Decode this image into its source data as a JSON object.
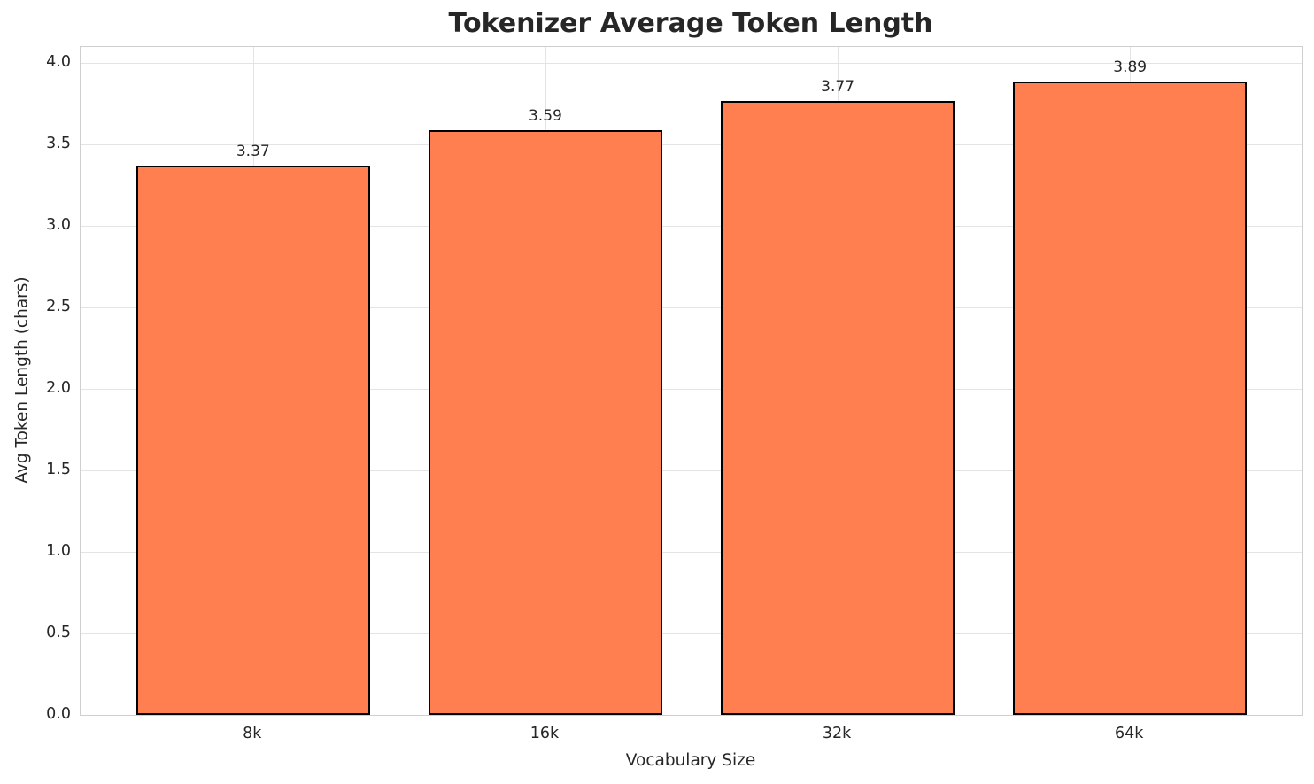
{
  "chart_data": {
    "type": "bar",
    "title": "Tokenizer Average Token Length",
    "xlabel": "Vocabulary Size",
    "ylabel": "Avg Token Length (chars)",
    "categories": [
      "8k",
      "16k",
      "32k",
      "64k"
    ],
    "values": [
      3.37,
      3.59,
      3.77,
      3.89
    ],
    "value_labels": [
      "3.37",
      "3.59",
      "3.77",
      "3.89"
    ],
    "yticks": [
      0.0,
      0.5,
      1.0,
      1.5,
      2.0,
      2.5,
      3.0,
      3.5,
      4.0
    ],
    "ytick_labels": [
      "0.0",
      "0.5",
      "1.0",
      "1.5",
      "2.0",
      "2.5",
      "3.0",
      "3.5",
      "4.0"
    ],
    "ylim": [
      0,
      4.1
    ],
    "xlim": [
      -0.59,
      3.59
    ],
    "bar_width_units": 0.8,
    "grid": true,
    "legend": "none",
    "bar_color": "#FF7F50",
    "bar_edge_color": "#000000",
    "grid_color": "#e4e4e4",
    "text_color": "#262626",
    "background_color": "#ffffff"
  }
}
